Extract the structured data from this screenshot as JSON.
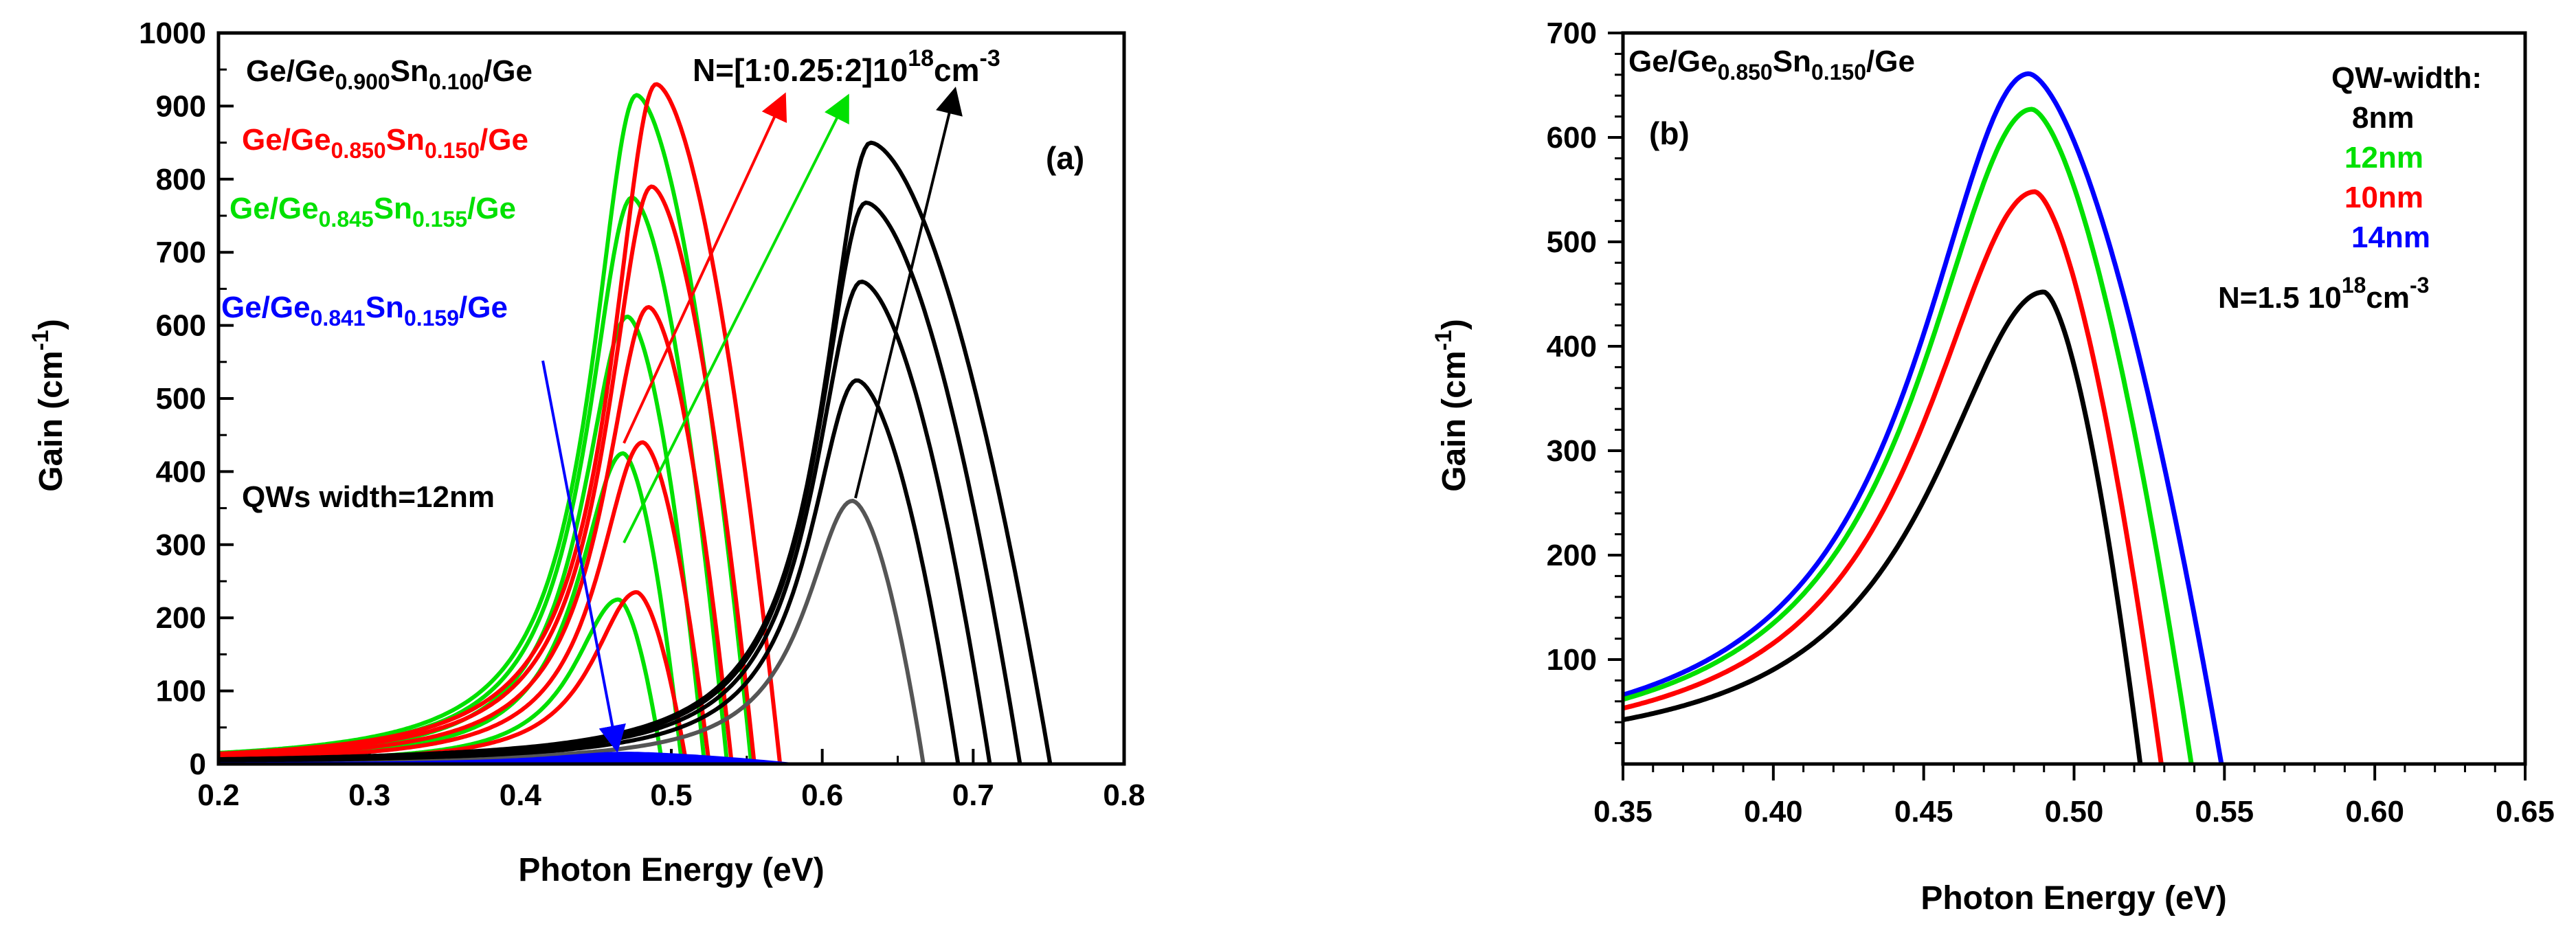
{
  "chart_data": [
    {
      "panel": "(a)",
      "type": "line",
      "xlabel": "Photon Energy (eV)",
      "ylabel_main": "Gain (cm",
      "ylabel_sup": "-1",
      "ylabel_end": ")",
      "xlim": [
        0.2,
        0.8
      ],
      "ylim": [
        0,
        1000
      ],
      "x_ticks": [
        "0.2",
        "0.3",
        "0.4",
        "0.5",
        "0.6",
        "0.7",
        "0.8"
      ],
      "x_tick_values": [
        0.2,
        0.3,
        0.4,
        0.5,
        0.6,
        0.7,
        0.8
      ],
      "y_ticks": [
        "0",
        "100",
        "200",
        "300",
        "400",
        "500",
        "600",
        "700",
        "800",
        "900",
        "1000"
      ],
      "y_tick_values": [
        0,
        100,
        200,
        300,
        400,
        500,
        600,
        700,
        800,
        900,
        1000
      ],
      "legend": [
        {
          "base": "Ge/Ge",
          "sub1": "0.900",
          "mid": "Sn",
          "sub2": "0.100",
          "tail": "/Ge",
          "color": "#000000"
        },
        {
          "base": "Ge/Ge",
          "sub1": "0.850",
          "mid": "Sn",
          "sub2": "0.150",
          "tail": "/Ge",
          "color": "#ff0000"
        },
        {
          "base": "Ge/Ge",
          "sub1": "0.845",
          "mid": "Sn",
          "sub2": "0.155",
          "tail": "/Ge",
          "color": "#00e000"
        },
        {
          "base": "Ge/Ge",
          "sub1": "0.841",
          "mid": "Sn",
          "sub2": "0.159",
          "tail": "/Ge",
          "color": "#0000ff"
        }
      ],
      "annotation_density_main": "N=[1:0.25:2]10",
      "annotation_density_sup1": "18",
      "annotation_density_unit": "cm",
      "annotation_density_sup2": "-3",
      "annotation_width": "QWs width=12nm",
      "series": [
        {
          "name": "Ge/Ge0.900Sn0.100/Ge",
          "color": "#000000",
          "peaks": [
            {
              "x": 0.62,
              "y": 360
            },
            {
              "x": 0.623,
              "y": 525
            },
            {
              "x": 0.626,
              "y": 660
            },
            {
              "x": 0.629,
              "y": 768
            },
            {
              "x": 0.632,
              "y": 850
            }
          ],
          "cutoffs": [
            0.667,
            0.69,
            0.711,
            0.731,
            0.751
          ]
        },
        {
          "name": "Ge/Ge0.850Sn0.150/Ge",
          "color": "#ff0000",
          "peaks": [
            {
              "x": 0.477,
              "y": 235
            },
            {
              "x": 0.481,
              "y": 440
            },
            {
              "x": 0.485,
              "y": 625
            },
            {
              "x": 0.487,
              "y": 790
            },
            {
              "x": 0.49,
              "y": 930
            }
          ],
          "cutoffs": [
            0.51,
            0.525,
            0.54,
            0.555,
            0.572
          ]
        },
        {
          "name": "Ge/Ge0.845Sn0.155/Ge",
          "color": "#00e000",
          "peaks": [
            {
              "x": 0.465,
              "y": 225
            },
            {
              "x": 0.468,
              "y": 425
            },
            {
              "x": 0.471,
              "y": 612
            },
            {
              "x": 0.474,
              "y": 775
            },
            {
              "x": 0.477,
              "y": 915
            }
          ],
          "cutoffs": [
            0.494,
            0.507,
            0.522,
            0.537,
            0.553
          ]
        },
        {
          "name": "Ge/Ge0.841Sn0.159/Ge",
          "color": "#0000ff",
          "peaks": [
            {
              "x": 0.47,
              "y": 15
            }
          ],
          "cutoffs": [
            0.58
          ]
        }
      ]
    },
    {
      "panel": "(b)",
      "type": "line",
      "xlabel": "Photon Energy (eV)",
      "ylabel_main": "Gain (cm",
      "ylabel_sup": "-1",
      "ylabel_end": ")",
      "xlim": [
        0.35,
        0.65
      ],
      "ylim": [
        0,
        700
      ],
      "x_ticks": [
        "0.35",
        "0.40",
        "0.45",
        "0.50",
        "0.55",
        "0.60",
        "0.65"
      ],
      "x_tick_values": [
        0.35,
        0.4,
        0.45,
        0.5,
        0.55,
        0.6,
        0.65
      ],
      "y_ticks": [
        "100",
        "200",
        "300",
        "400",
        "500",
        "600",
        "700"
      ],
      "y_tick_values": [
        100,
        200,
        300,
        400,
        500,
        600,
        700
      ],
      "title_base": "Ge/Ge",
      "title_sub1": "0.850",
      "title_mid": "Sn",
      "title_sub2": "0.150",
      "title_tail": "/Ge",
      "legend_title": "QW-width:",
      "legend": [
        {
          "label": "8nm",
          "color": "#000000"
        },
        {
          "label": "12nm",
          "color": "#00e000"
        },
        {
          "label": "10nm",
          "color": "#ff0000"
        },
        {
          "label": "14nm",
          "color": "#0000ff"
        }
      ],
      "annotation_density_main": "N=1.5 10",
      "annotation_density_sup1": "18",
      "annotation_density_unit": "cm",
      "annotation_density_sup2": "-3",
      "series": [
        {
          "name": "8nm",
          "color": "#000000",
          "peak_x": 0.49,
          "peak_y": 452,
          "cutoff": 0.522
        },
        {
          "name": "10nm",
          "color": "#ff0000",
          "peak_x": 0.487,
          "peak_y": 548,
          "cutoff": 0.529
        },
        {
          "name": "12nm",
          "color": "#00e000",
          "peak_x": 0.486,
          "peak_y": 627,
          "cutoff": 0.539
        },
        {
          "name": "14nm",
          "color": "#0000ff",
          "peak_x": 0.485,
          "peak_y": 661,
          "cutoff": 0.549
        }
      ]
    }
  ]
}
